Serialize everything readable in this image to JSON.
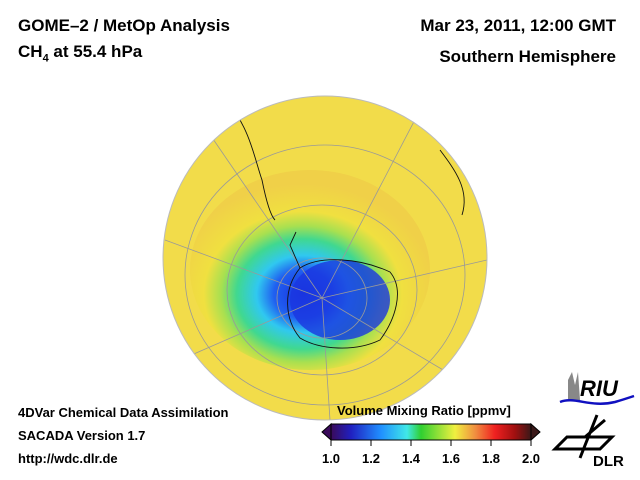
{
  "header": {
    "title_line1": "GOME–2 / MetOp Analysis",
    "species": "CH",
    "species_sub": "4",
    "level": " at 55.4 hPa",
    "date": "Mar 23, 2011, 12:00 GMT",
    "region": "Southern Hemisphere"
  },
  "footer": {
    "line1": "4DVar Chemical Data Assimilation",
    "line2": "SACADA Version 1.7",
    "url": "http://wdc.dlr.de"
  },
  "colorbar": {
    "title": "Volume Mixing Ratio [ppmv]",
    "ticks": [
      "1.0",
      "1.2",
      "1.4",
      "1.6",
      "1.8",
      "2.0"
    ],
    "range": [
      1.0,
      2.0
    ],
    "colors": [
      "#3a0a5a",
      "#2a2ad0",
      "#2080ff",
      "#40e8e8",
      "#30d030",
      "#f0f040",
      "#f08030",
      "#f02020",
      "#b01010",
      "#3a1010"
    ]
  },
  "logos": {
    "riu": "RIU",
    "dlr": "DLR"
  }
}
